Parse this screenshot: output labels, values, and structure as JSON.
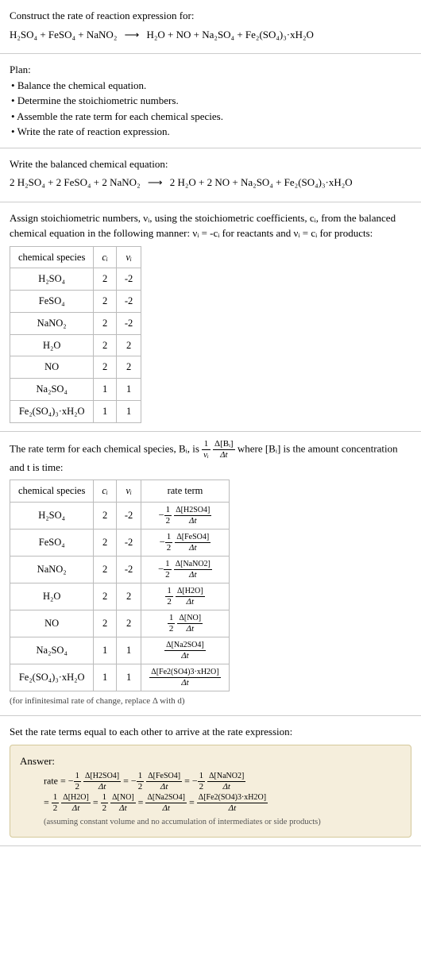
{
  "s1": {
    "title": "Construct the rate of reaction expression for:",
    "lhs": "H₂SO₄ + FeSO₄ + NaNO₂",
    "arrow": "⟶",
    "rhs": "H₂O + NO + Na₂SO₄ + Fe₂(SO₄)₃·xH₂O"
  },
  "s2": {
    "title": "Plan:",
    "items": [
      "Balance the chemical equation.",
      "Determine the stoichiometric numbers.",
      "Assemble the rate term for each chemical species.",
      "Write the rate of reaction expression."
    ]
  },
  "s3": {
    "title": "Write the balanced chemical equation:",
    "lhs": "2 H₂SO₄ + 2 FeSO₄ + 2 NaNO₂",
    "arrow": "⟶",
    "rhs": "2 H₂O + 2 NO + Na₂SO₄ + Fe₂(SO₄)₃·xH₂O"
  },
  "s4": {
    "intro1": "Assign stoichiometric numbers, νᵢ, using the stoichiometric coefficients, cᵢ, from the balanced chemical equation in the following manner: νᵢ = -cᵢ for reactants and νᵢ = cᵢ for products:",
    "headers": [
      "chemical species",
      "cᵢ",
      "νᵢ"
    ],
    "rows": [
      [
        "H₂SO₄",
        "2",
        "-2"
      ],
      [
        "FeSO₄",
        "2",
        "-2"
      ],
      [
        "NaNO₂",
        "2",
        "-2"
      ],
      [
        "H₂O",
        "2",
        "2"
      ],
      [
        "NO",
        "2",
        "2"
      ],
      [
        "Na₂SO₄",
        "1",
        "1"
      ],
      [
        "Fe₂(SO₄)₃·xH₂O",
        "1",
        "1"
      ]
    ]
  },
  "s5": {
    "intro1": "The rate term for each chemical species, Bᵢ, is ",
    "intro2": " where [Bᵢ] is the amount concentration and t is time:",
    "frac1": {
      "num": "1",
      "den": "νᵢ"
    },
    "frac2": {
      "num": "Δ[Bᵢ]",
      "den": "Δt"
    },
    "headers": [
      "chemical species",
      "cᵢ",
      "νᵢ",
      "rate term"
    ],
    "species": [
      {
        "name": "H₂SO₄",
        "c": "2",
        "v": "-2",
        "sign": "−",
        "coefnum": "1",
        "coefden": "2",
        "dnum": "Δ[H2SO4]",
        "dden": "Δt"
      },
      {
        "name": "FeSO₄",
        "c": "2",
        "v": "-2",
        "sign": "−",
        "coefnum": "1",
        "coefden": "2",
        "dnum": "Δ[FeSO4]",
        "dden": "Δt"
      },
      {
        "name": "NaNO₂",
        "c": "2",
        "v": "-2",
        "sign": "−",
        "coefnum": "1",
        "coefden": "2",
        "dnum": "Δ[NaNO2]",
        "dden": "Δt"
      },
      {
        "name": "H₂O",
        "c": "2",
        "v": "2",
        "sign": "",
        "coefnum": "1",
        "coefden": "2",
        "dnum": "Δ[H2O]",
        "dden": "Δt"
      },
      {
        "name": "NO",
        "c": "2",
        "v": "2",
        "sign": "",
        "coefnum": "1",
        "coefden": "2",
        "dnum": "Δ[NO]",
        "dden": "Δt"
      },
      {
        "name": "Na₂SO₄",
        "c": "1",
        "v": "1",
        "sign": "",
        "coefnum": "",
        "coefden": "",
        "dnum": "Δ[Na2SO4]",
        "dden": "Δt"
      },
      {
        "name": "Fe₂(SO₄)₃·xH₂O",
        "c": "1",
        "v": "1",
        "sign": "",
        "coefnum": "",
        "coefden": "",
        "dnum": "Δ[Fe2(SO4)3·xH2O]",
        "dden": "Δt"
      }
    ],
    "note": "(for infinitesimal rate of change, replace Δ with d)"
  },
  "s6": {
    "title": "Set the rate terms equal to each other to arrive at the rate expression:",
    "answerLabel": "Answer:",
    "rateWord": "rate = ",
    "eq": " = ",
    "terms": [
      {
        "sign": "−",
        "cnum": "1",
        "cden": "2",
        "dnum": "Δ[H2SO4]",
        "dden": "Δt"
      },
      {
        "sign": "−",
        "cnum": "1",
        "cden": "2",
        "dnum": "Δ[FeSO4]",
        "dden": "Δt"
      },
      {
        "sign": "−",
        "cnum": "1",
        "cden": "2",
        "dnum": "Δ[NaNO2]",
        "dden": "Δt"
      },
      {
        "sign": "",
        "cnum": "1",
        "cden": "2",
        "dnum": "Δ[H2O]",
        "dden": "Δt"
      },
      {
        "sign": "",
        "cnum": "1",
        "cden": "2",
        "dnum": "Δ[NO]",
        "dden": "Δt"
      },
      {
        "sign": "",
        "cnum": "",
        "cden": "",
        "dnum": "Δ[Na2SO4]",
        "dden": "Δt"
      },
      {
        "sign": "",
        "cnum": "",
        "cden": "",
        "dnum": "Δ[Fe2(SO4)3·xH2O]",
        "dden": "Δt"
      }
    ],
    "footnote": "(assuming constant volume and no accumulation of intermediates or side products)"
  }
}
